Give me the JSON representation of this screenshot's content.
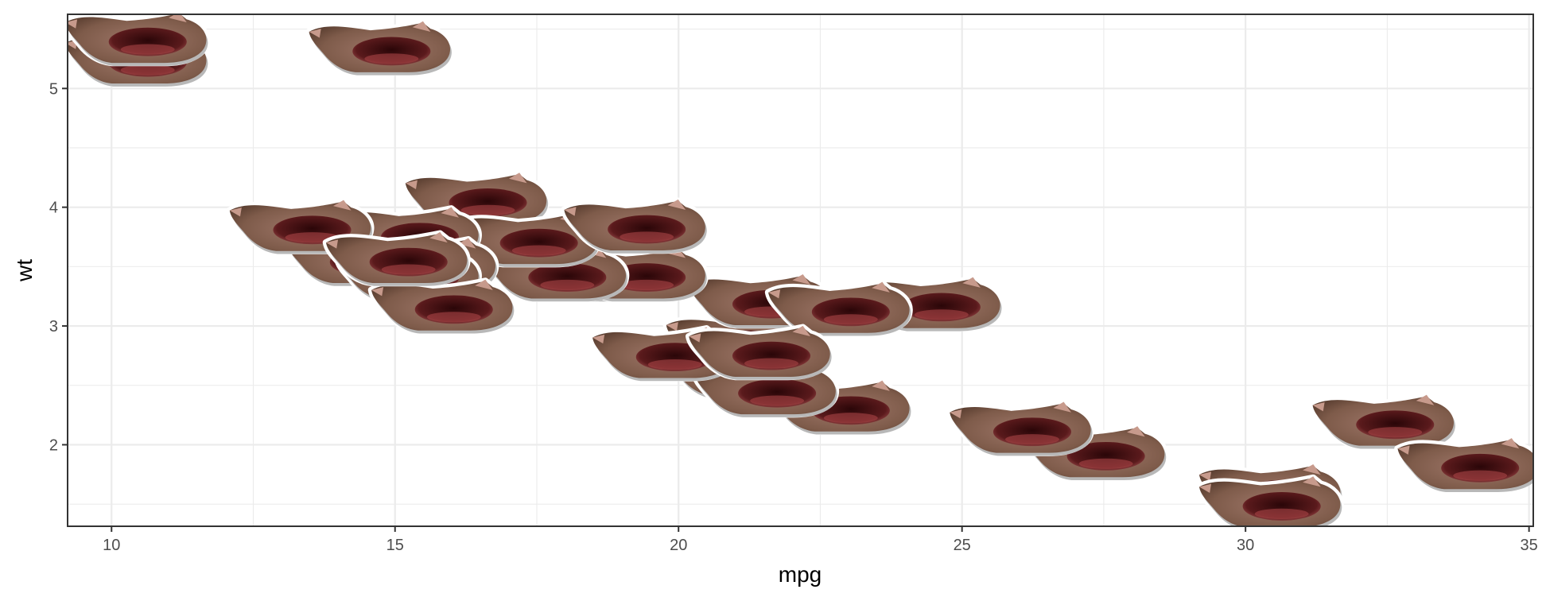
{
  "chart_data": {
    "type": "scatter",
    "marker": "cat-image",
    "title": "",
    "xlabel": "mpg",
    "ylabel": "wt",
    "xlim": [
      9.225,
      35.075
    ],
    "ylim": [
      1.3135,
      5.6245
    ],
    "xticks": [
      10,
      15,
      20,
      25,
      30,
      35
    ],
    "yticks": [
      2,
      3,
      4,
      5
    ],
    "xtick_labels": [
      "10",
      "15",
      "20",
      "25",
      "30",
      "35"
    ],
    "ytick_labels": [
      "2",
      "3",
      "4",
      "5"
    ],
    "grid": true,
    "legend": "none",
    "x": [
      21.0,
      21.0,
      22.8,
      21.4,
      18.7,
      18.1,
      14.3,
      24.4,
      22.8,
      19.2,
      17.8,
      16.4,
      17.3,
      15.2,
      10.4,
      10.4,
      14.7,
      32.4,
      30.4,
      33.9,
      21.5,
      15.5,
      15.2,
      13.3,
      19.2,
      27.3,
      26.0,
      30.4,
      15.8,
      19.7,
      15.0,
      21.4
    ],
    "y": [
      2.62,
      2.875,
      2.32,
      3.215,
      3.44,
      3.46,
      3.57,
      3.19,
      3.15,
      3.44,
      3.44,
      4.07,
      3.73,
      3.78,
      5.25,
      5.424,
      5.345,
      2.2,
      1.615,
      1.835,
      2.465,
      3.52,
      3.435,
      3.84,
      3.845,
      1.935,
      2.14,
      1.513,
      3.17,
      2.77,
      3.57,
      2.78
    ]
  },
  "colors": {
    "background": "#ffffff",
    "grid": "#ebebeb",
    "border": "#333333",
    "cat_fur": "#8a6652",
    "cat_mouth": "#4a1214"
  }
}
